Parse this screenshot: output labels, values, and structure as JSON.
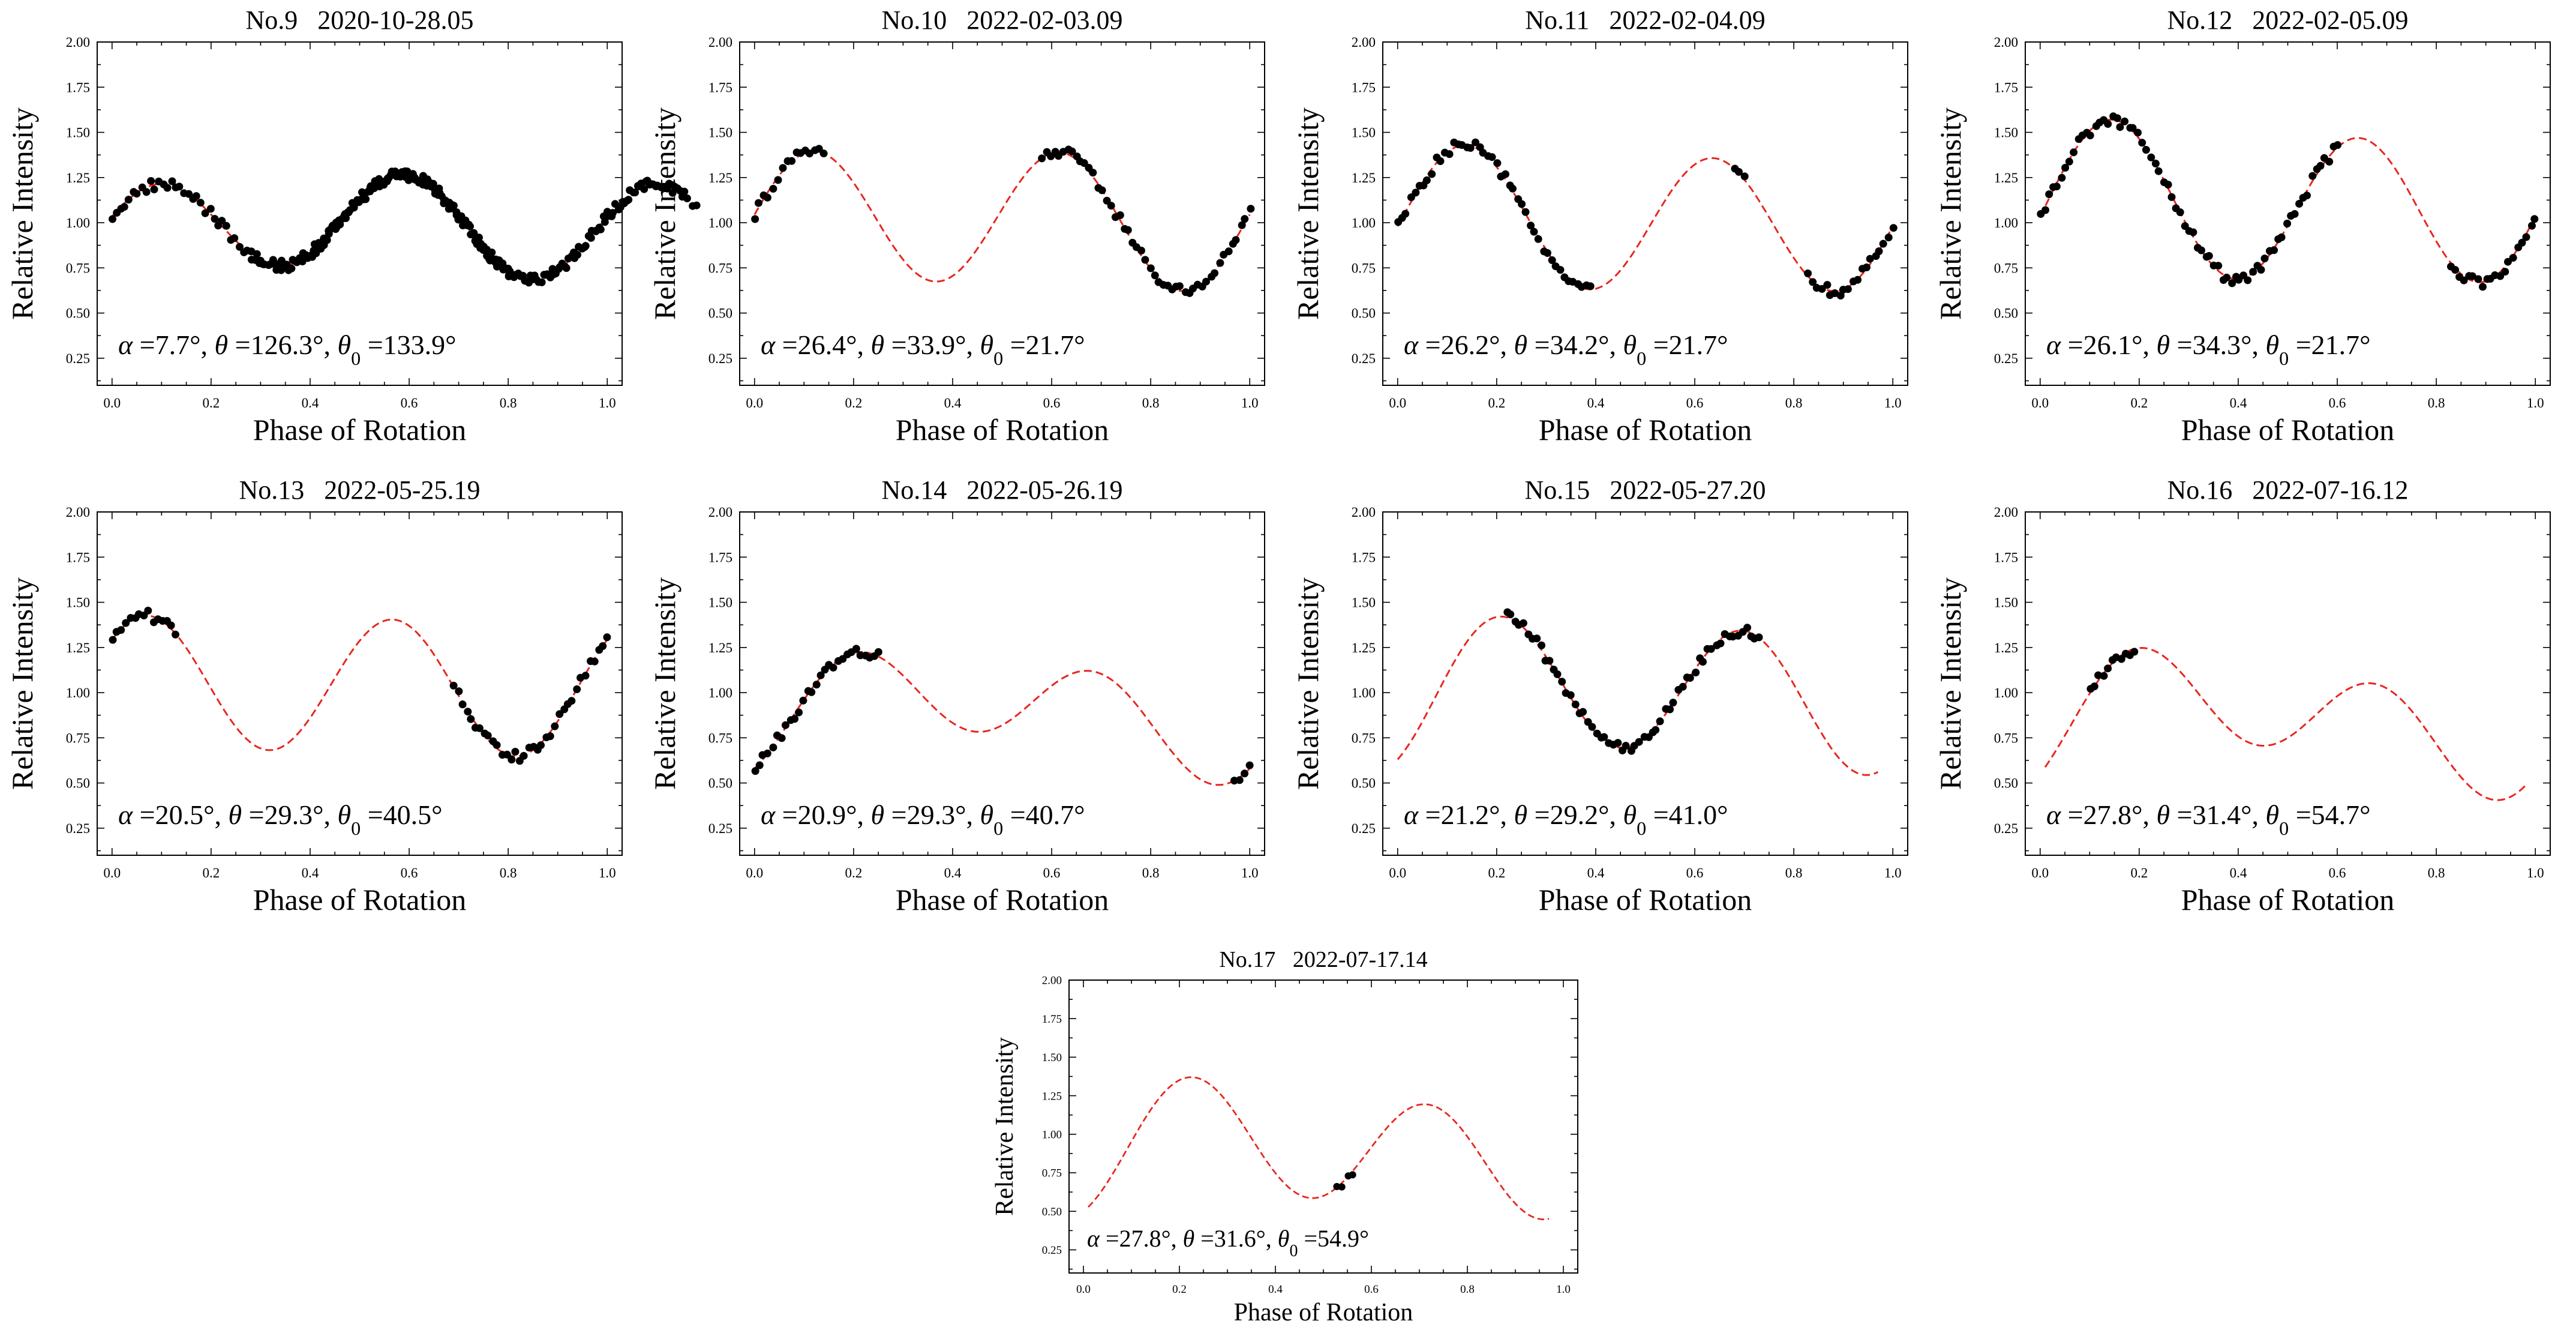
{
  "figure": {
    "xlabel": "Phase of Rotation",
    "ylabel": "Relative Intensity",
    "x_ticks": [
      0.0,
      0.2,
      0.4,
      0.6,
      0.8,
      1.0
    ],
    "y_ticks": [
      0.25,
      0.5,
      0.75,
      1.0,
      1.25,
      1.5,
      1.75,
      2.0
    ],
    "xlim": [
      -0.03,
      1.03
    ],
    "ylim": [
      0.1,
      2.0
    ],
    "model_color": "#e8261f",
    "obs_color": "#000000"
  },
  "chart_data": [
    {
      "type": "scatter",
      "number": "No.9",
      "date": "2020-10-28.05",
      "alpha": "7.7°",
      "theta": "126.3°",
      "theta0": "133.9°",
      "model": {
        "mean": 0.98,
        "a1": -0.045,
        "b1": 0.02,
        "a2": 0.1,
        "b2": 0.24,
        "x_start": 0.0,
        "x_end": 1.0
      },
      "obs": [
        [
          0.0,
          1.15,
          0.15
        ],
        [
          0.28,
          0.8,
          0.38
        ],
        [
          0.4,
          1.18,
          0.72
        ],
        [
          0.79,
          0.82,
          1.0
        ]
      ]
    },
    {
      "type": "scatter",
      "number": "No.10",
      "date": "2022-02-03.09",
      "alpha": "26.4°",
      "theta": "33.9°",
      "theta0": "21.7°",
      "model": {
        "mean": 1.02,
        "a1": -0.015,
        "b1": 0.022,
        "a2": 0.04,
        "b2": 0.37,
        "x_start": 0.0,
        "x_end": 1.0
      },
      "obs": [
        [
          0.0,
          0.14,
          0.55
        ],
        [
          0.58,
          1.0,
          0.55
        ]
      ]
    },
    {
      "type": "scatter",
      "number": "No.11",
      "date": "2022-02-04.09",
      "alpha": "26.2°",
      "theta": "34.2°",
      "theta0": "21.7°",
      "model": {
        "mean": 1.01,
        "a1": 0.02,
        "b1": 0.03,
        "a2": -0.05,
        "b2": 0.38,
        "x_start": 0.0,
        "x_end": 1.0
      },
      "obs": [
        [
          0.0,
          0.39,
          0.35
        ],
        [
          0.68,
          0.7,
          0.3
        ],
        [
          0.83,
          1.0,
          0.3
        ]
      ]
    },
    {
      "type": "scatter",
      "number": "No.12",
      "date": "2022-02-05.09",
      "alpha": "26.1°",
      "theta": "34.3°",
      "theta0": "21.7°",
      "model": {
        "mean": 1.1,
        "a1": 0.025,
        "b1": 0.045,
        "a2": -0.09,
        "b2": 0.41,
        "x_start": 0.0,
        "x_end": 1.0
      },
      "obs": [
        [
          0.0,
          0.6,
          0.4
        ],
        [
          0.83,
          1.0,
          0.25
        ]
      ]
    },
    {
      "type": "scatter",
      "number": "No.13",
      "date": "2022-05-25.19",
      "alpha": "20.5°",
      "theta": "29.3°",
      "theta0": "40.5°",
      "model": {
        "mean": 1.04,
        "a1": 0.003,
        "b1": 0.02,
        "a2": 0.25,
        "b2": 0.28,
        "x_start": 0.0,
        "x_end": 1.0
      },
      "obs": [
        [
          0.0,
          0.13,
          0.45
        ],
        [
          0.69,
          1.0,
          0.45
        ]
      ]
    },
    {
      "type": "scatter",
      "number": "No.14",
      "date": "2022-05-26.19",
      "alpha": "20.9°",
      "theta": "29.3°",
      "theta0": "40.7°",
      "model": {
        "mean": 0.9,
        "a1": -0.12,
        "b1": 0.1,
        "a2": -0.2,
        "b2": 0.17,
        "x_start": 0.0,
        "x_end": 1.0
      },
      "obs": [
        [
          0.0,
          0.25,
          0.55
        ],
        [
          0.97,
          1.0,
          0.05
        ]
      ]
    },
    {
      "type": "scatter",
      "number": "No.15",
      "date": "2022-05-27.20",
      "alpha": "21.2°",
      "theta": "29.2°",
      "theta0": "41.0°",
      "model": {
        "mean": 1.0,
        "a1": -0.06,
        "b1": 0.06,
        "a2": -0.31,
        "b2": 0.22,
        "x_start": 0.0,
        "x_end": 0.97
      },
      "obs": [
        [
          0.22,
          0.73,
          0.6
        ]
      ]
    },
    {
      "type": "scatter",
      "number": "No.16",
      "date": "2022-07-16.12",
      "alpha": "27.8°",
      "theta": "31.4°",
      "theta0": "54.7°",
      "model": {
        "mean": 0.85,
        "a1": -0.1,
        "b1": 0.15,
        "a2": -0.2,
        "b2": 0.21,
        "x_start": 0.01,
        "x_end": 0.98
      },
      "obs": [
        [
          0.1,
          0.19,
          0.1
        ]
      ]
    },
    {
      "type": "scatter",
      "number": "No.17",
      "date": "2022-07-17.14",
      "alpha": "27.8°",
      "theta": "31.6°",
      "theta0": "54.9°",
      "model": {
        "mean": 0.9,
        "a1": -0.05,
        "b1": 0.1,
        "a2": -0.35,
        "b2": 0.15,
        "x_start": 0.01,
        "x_end": 0.97
      },
      "obs": [
        [
          0.53,
          0.56,
          0.06
        ]
      ]
    }
  ]
}
